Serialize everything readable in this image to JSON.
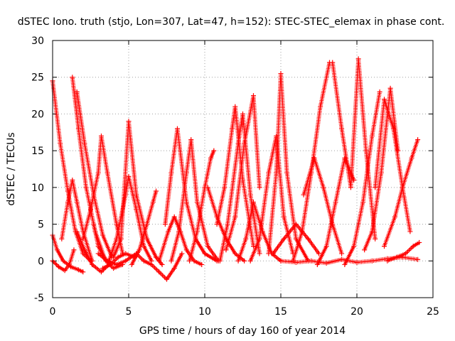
{
  "chart_data": {
    "type": "scatter",
    "title": "dSTEC Iono. truth (stjo, Lon=307, Lat=47, h=152): STEC-STEC_elemax in phase cont.",
    "xlabel": "GPS time / hours of day 160 of year 2014",
    "ylabel": "dSTEC  / TECUs",
    "xlim": [
      0,
      25
    ],
    "ylim": [
      -5,
      30
    ],
    "x_ticks": [
      "0",
      "5",
      "10",
      "15",
      "20",
      "25"
    ],
    "y_ticks": [
      "-5",
      "0",
      "5",
      "10",
      "15",
      "20",
      "25",
      "30"
    ],
    "grid": true,
    "marker": "+",
    "color": "#ff0000",
    "series": [
      {
        "x": [
          0.0,
          0.5,
          1.0,
          1.5,
          2.0,
          2.5
        ],
        "y": [
          24.5,
          16.0,
          9.5,
          4.0,
          1.0,
          0.0
        ]
      },
      {
        "x": [
          0.0,
          0.3,
          0.7,
          1.2,
          1.7,
          2.0
        ],
        "y": [
          3.5,
          1.5,
          0.0,
          -0.8,
          -1.2,
          -1.5
        ]
      },
      {
        "x": [
          0.0,
          0.4,
          0.8,
          1.1,
          1.4
        ],
        "y": [
          0.0,
          -0.8,
          -1.3,
          -0.5,
          1.5
        ]
      },
      {
        "x": [
          0.6,
          1.0,
          1.3,
          1.6,
          2.0,
          2.6
        ],
        "y": [
          3.0,
          8.0,
          11.0,
          8.0,
          4.0,
          0.0
        ]
      },
      {
        "x": [
          1.3,
          1.7,
          2.2,
          2.8,
          3.4
        ],
        "y": [
          25.0,
          18.0,
          10.0,
          4.0,
          0.5
        ]
      },
      {
        "x": [
          1.6,
          2.1,
          2.7,
          3.3,
          3.9
        ],
        "y": [
          23.0,
          16.0,
          9.0,
          3.5,
          0.5
        ]
      },
      {
        "x": [
          1.6,
          2.1,
          2.6,
          3.2,
          3.7
        ],
        "y": [
          4.0,
          1.5,
          -0.5,
          -1.5,
          -0.5
        ]
      },
      {
        "x": [
          2.0,
          2.5,
          3.0,
          3.2,
          3.6,
          4.2,
          4.6
        ],
        "y": [
          3.0,
          7.0,
          12.0,
          17.0,
          12.0,
          5.0,
          1.0
        ]
      },
      {
        "x": [
          2.7,
          3.0,
          3.5,
          4.0,
          4.6
        ],
        "y": [
          5.0,
          2.0,
          0.0,
          -1.0,
          -0.5
        ]
      },
      {
        "x": [
          3.3,
          3.8,
          4.3,
          4.8,
          5.4
        ],
        "y": [
          -1.0,
          -0.5,
          0.5,
          1.0,
          0.5
        ]
      },
      {
        "x": [
          3.7,
          4.2,
          4.8,
          5.0,
          5.5,
          6.0,
          6.5
        ],
        "y": [
          0.0,
          3.0,
          9.0,
          11.5,
          7.0,
          2.0,
          0.0
        ]
      },
      {
        "x": [
          3.0,
          3.6,
          4.2,
          4.8,
          5.5
        ],
        "y": [
          1.0,
          0.0,
          -0.5,
          0.0,
          1.0
        ]
      },
      {
        "x": [
          4.0,
          4.5,
          5.0,
          5.5,
          6.2,
          6.8,
          7.2
        ],
        "y": [
          0.5,
          3.0,
          19.0,
          9.0,
          3.0,
          0.5,
          -0.5
        ]
      },
      {
        "x": [
          5.2,
          5.7,
          6.2,
          6.6,
          6.8
        ],
        "y": [
          -0.5,
          1.5,
          5.0,
          8.0,
          9.5
        ]
      },
      {
        "x": [
          5.5,
          6.0,
          6.5,
          7.0,
          7.5,
          8.0,
          8.5
        ],
        "y": [
          1.0,
          0.0,
          -0.5,
          -1.5,
          -2.5,
          -1.0,
          1.0
        ]
      },
      {
        "x": [
          7.0,
          7.6,
          8.0,
          8.4,
          8.8,
          9.3,
          9.8
        ],
        "y": [
          0.0,
          4.0,
          6.0,
          4.0,
          1.5,
          0.0,
          -0.5
        ]
      },
      {
        "x": [
          7.4,
          7.8,
          8.2,
          8.8,
          9.4,
          10.0,
          10.8
        ],
        "y": [
          5.0,
          12.0,
          18.0,
          8.0,
          3.0,
          1.0,
          0.0
        ]
      },
      {
        "x": [
          7.8,
          8.3,
          8.8,
          9.1,
          9.5,
          10.2,
          10.9
        ],
        "y": [
          0.0,
          4.0,
          12.0,
          16.5,
          8.0,
          2.0,
          0.0
        ]
      },
      {
        "x": [
          9.0,
          9.5,
          10.0,
          10.4,
          10.6
        ],
        "y": [
          0.0,
          4.0,
          10.0,
          14.0,
          15.0
        ]
      },
      {
        "x": [
          10.2,
          10.8,
          11.4,
          12.0,
          12.6
        ],
        "y": [
          10.0,
          6.0,
          3.0,
          1.0,
          0.0
        ]
      },
      {
        "x": [
          10.8,
          11.3,
          11.8,
          12.0,
          12.5,
          13.2
        ],
        "y": [
          5.0,
          10.0,
          18.0,
          21.0,
          11.0,
          2.0
        ]
      },
      {
        "x": [
          11.0,
          11.5,
          12.2,
          12.5,
          13.0,
          13.6
        ],
        "y": [
          0.0,
          5.0,
          16.0,
          20.0,
          9.0,
          1.0
        ]
      },
      {
        "x": [
          11.4,
          12.0,
          12.6,
          13.2,
          13.6
        ],
        "y": [
          1.5,
          6.0,
          16.0,
          22.5,
          10.0
        ]
      },
      {
        "x": [
          12.2,
          12.7,
          13.2,
          13.8,
          14.4,
          15.0
        ],
        "y": [
          0.0,
          3.0,
          8.0,
          4.0,
          1.0,
          0.0
        ]
      },
      {
        "x": [
          13.0,
          13.6,
          14.2,
          14.7,
          15.2,
          15.8
        ],
        "y": [
          0.0,
          3.0,
          12.0,
          17.0,
          6.0,
          1.0
        ]
      },
      {
        "x": [
          14.2,
          14.7,
          15.0,
          15.4,
          16.0,
          16.8
        ],
        "y": [
          1.0,
          12.0,
          25.5,
          12.0,
          3.0,
          0.0
        ]
      },
      {
        "x": [
          14.5,
          15.2,
          16.0,
          16.8,
          17.5
        ],
        "y": [
          1.0,
          3.0,
          5.0,
          3.0,
          1.0
        ]
      },
      {
        "x": [
          15.8,
          16.4,
          17.0,
          17.6,
          18.2
        ],
        "y": [
          0.0,
          4.0,
          12.0,
          21.0,
          27.0
        ]
      },
      {
        "x": [
          16.5,
          17.2,
          17.8,
          18.4,
          19.0
        ],
        "y": [
          9.0,
          14.0,
          10.0,
          5.0,
          1.0
        ]
      },
      {
        "x": [
          17.4,
          18.0,
          18.6,
          19.2,
          19.8
        ],
        "y": [
          -0.5,
          2.0,
          8.0,
          14.0,
          11.0
        ]
      },
      {
        "x": [
          18.4,
          19.0,
          19.6,
          20.1,
          20.6,
          21.2
        ],
        "y": [
          27.0,
          18.0,
          10.0,
          27.5,
          15.0,
          3.0
        ]
      },
      {
        "x": [
          19.2,
          19.8,
          20.4,
          21.0,
          21.5
        ],
        "y": [
          -0.5,
          2.0,
          8.0,
          17.0,
          23.0
        ]
      },
      {
        "x": [
          20.5,
          21.0,
          21.6,
          22.2,
          22.7
        ],
        "y": [
          1.5,
          4.0,
          12.0,
          23.5,
          15.0
        ]
      },
      {
        "x": [
          21.2,
          21.8,
          22.4,
          23.0,
          23.5
        ],
        "y": [
          10.0,
          22.0,
          18.0,
          10.0,
          4.0
        ]
      },
      {
        "x": [
          21.8,
          22.5,
          23.0,
          23.6,
          24.0
        ],
        "y": [
          2.0,
          6.0,
          10.0,
          14.0,
          16.5
        ]
      },
      {
        "x": [
          22.0,
          22.6,
          23.2,
          23.7,
          24.1
        ],
        "y": [
          0.0,
          0.5,
          1.0,
          2.0,
          2.5
        ]
      },
      {
        "x": [
          15.0,
          16.0,
          17.0,
          18.0,
          19.0,
          20.0,
          21.0,
          22.0,
          23.0,
          24.0
        ],
        "y": [
          0.0,
          -0.2,
          0.0,
          -0.3,
          0.2,
          -0.2,
          0.0,
          0.3,
          0.5,
          0.2
        ]
      }
    ]
  }
}
